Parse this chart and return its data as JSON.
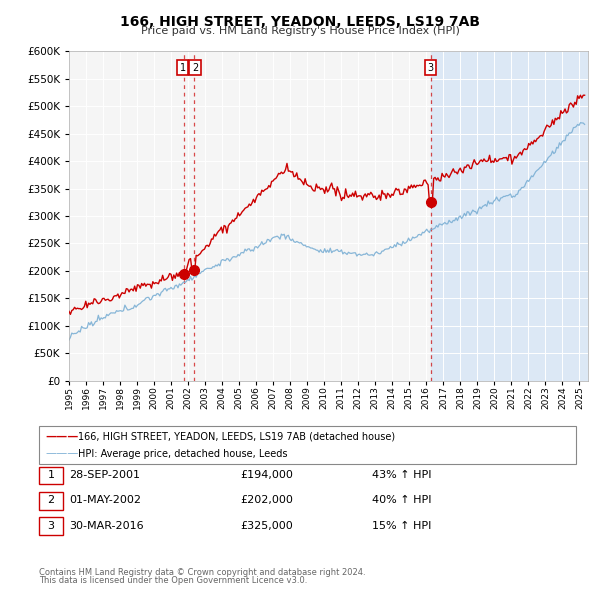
{
  "title": "166, HIGH STREET, YEADON, LEEDS, LS19 7AB",
  "subtitle": "Price paid vs. HM Land Registry's House Price Index (HPI)",
  "legend_line1": "166, HIGH STREET, YEADON, LEEDS, LS19 7AB (detached house)",
  "legend_line2": "HPI: Average price, detached house, Leeds",
  "footer_line1": "Contains HM Land Registry data © Crown copyright and database right 2024.",
  "footer_line2": "This data is licensed under the Open Government Licence v3.0.",
  "transactions": [
    {
      "num": 1,
      "date": "28-SEP-2001",
      "price": "£194,000",
      "pct": "43% ↑ HPI",
      "year": 2001.75
    },
    {
      "num": 2,
      "date": "01-MAY-2002",
      "price": "£202,000",
      "pct": "40% ↑ HPI",
      "year": 2002.33
    },
    {
      "num": 3,
      "date": "30-MAR-2016",
      "price": "£325,000",
      "pct": "15% ↑ HPI",
      "year": 2016.25
    }
  ],
  "transaction_values": [
    194000,
    202000,
    325000
  ],
  "vline_years": [
    2001.75,
    2002.33,
    2016.25
  ],
  "red_color": "#cc0000",
  "blue_color": "#7bafd4",
  "shade_color": "#dce8f5",
  "grid_color": "#cccccc",
  "bg_color": "#f5f5f5",
  "ylim": [
    0,
    600000
  ],
  "ytick_vals": [
    0,
    50000,
    100000,
    150000,
    200000,
    250000,
    300000,
    350000,
    400000,
    450000,
    500000,
    550000,
    600000
  ],
  "xlim_start": 1995.0,
  "xlim_end": 2025.5
}
